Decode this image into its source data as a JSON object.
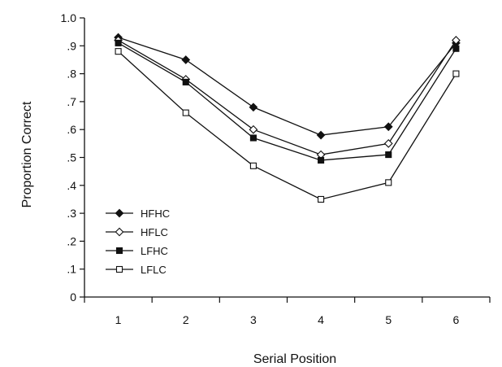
{
  "chart_data": {
    "type": "line",
    "title": "",
    "xlabel": "Serial Position",
    "ylabel": "Proportion Correct",
    "x": [
      1,
      2,
      3,
      4,
      5,
      6
    ],
    "x_tick_labels": [
      "1",
      "2",
      "3",
      "4",
      "5",
      "6"
    ],
    "xlim": [
      0.5,
      6.5
    ],
    "ylim": [
      0,
      1.0
    ],
    "y_ticks": [
      0,
      0.1,
      0.2,
      0.3,
      0.4,
      0.5,
      0.6,
      0.7,
      0.8,
      0.9,
      1.0
    ],
    "y_tick_labels": [
      "0",
      ".1",
      ".2",
      ".3",
      ".4",
      ".5",
      ".6",
      ".7",
      ".8",
      ".9",
      "1.0"
    ],
    "grid": false,
    "legend_position": "bottom-left",
    "series": [
      {
        "name": "HFHC",
        "marker": "diamond-filled",
        "values": [
          0.93,
          0.85,
          0.68,
          0.58,
          0.61,
          0.91
        ]
      },
      {
        "name": "HFLC",
        "marker": "diamond-open",
        "values": [
          0.92,
          0.78,
          0.6,
          0.51,
          0.55,
          0.92
        ]
      },
      {
        "name": "LFHC",
        "marker": "square-filled",
        "values": [
          0.91,
          0.77,
          0.57,
          0.49,
          0.51,
          0.89
        ]
      },
      {
        "name": "LFLC",
        "marker": "square-open",
        "values": [
          0.88,
          0.66,
          0.47,
          0.35,
          0.41,
          0.8
        ]
      }
    ]
  }
}
